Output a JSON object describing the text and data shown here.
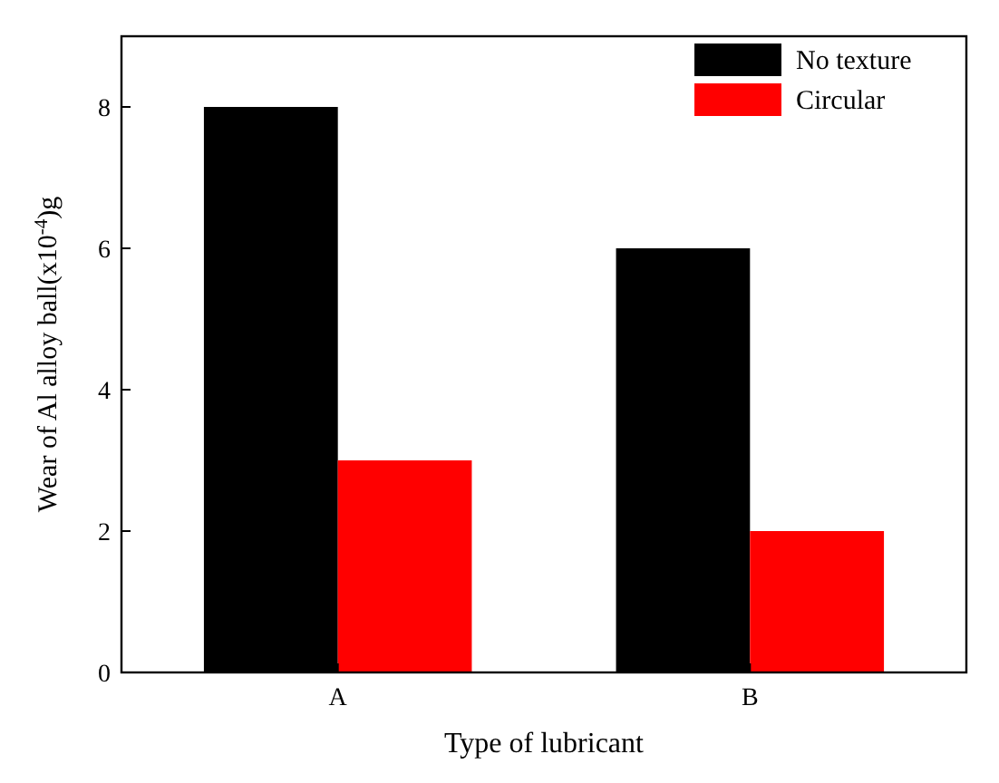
{
  "chart_data": {
    "type": "bar",
    "xlabel": "Type of lubricant",
    "ylabel": "Wear of Al alloy ball(x10$^{-4}$)g",
    "categories": [
      "A",
      "B"
    ],
    "series": [
      {
        "name": "No texture",
        "color": "#000000",
        "values": [
          8,
          6
        ]
      },
      {
        "name": "Circular",
        "color": "#ff0000",
        "values": [
          3,
          2
        ]
      }
    ],
    "ylim": [
      0,
      9
    ],
    "yticks": [
      0,
      2,
      4,
      6,
      8
    ],
    "legend": "top right",
    "grid": false
  }
}
